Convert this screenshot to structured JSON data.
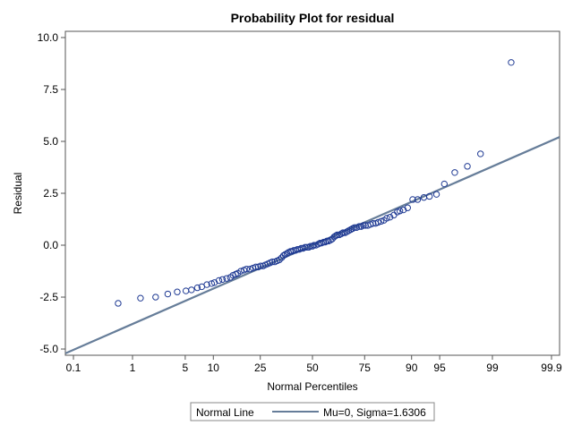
{
  "chart_data": {
    "type": "scatter",
    "title": "Probability Plot for residual",
    "xlabel": "Normal Percentiles",
    "ylabel": "Residual",
    "x_scale": "normal-probability",
    "xlim": [
      0.07,
      99.93
    ],
    "ylim": [
      -5.3,
      10.3
    ],
    "x_ticks": [
      0.1,
      1,
      5,
      10,
      25,
      50,
      75,
      90,
      95,
      99,
      99.9
    ],
    "x_tick_labels": [
      "0.1",
      "1",
      "5",
      "10",
      "25",
      "50",
      "75",
      "90",
      "95",
      "99",
      "99.9"
    ],
    "y_ticks": [
      -5,
      -2.5,
      0,
      2.5,
      5,
      7.5,
      10
    ],
    "y_tick_labels": [
      "-5.0",
      "-2.5",
      "0.0",
      "2.5",
      "5.0",
      "7.5",
      "10.0"
    ],
    "grid": false,
    "marker_color": "#1f3a93",
    "line_color": "#667d99",
    "normal_line": {
      "mu": 0,
      "sigma": 1.6306
    },
    "legend": {
      "placement": "bottom-center",
      "title": "Normal Line",
      "entry": "Mu=0, Sigma=1.6306"
    },
    "series": [
      {
        "name": "residual",
        "x": [
          0.6,
          1.31,
          2.13,
          3.07,
          4.02,
          5.09,
          5.89,
          6.84,
          7.62,
          8.61,
          9.61,
          10.25,
          11.33,
          12.23,
          13.35,
          14.41,
          15.21,
          16.01,
          16.72,
          17.73,
          18.78,
          19.7,
          20.98,
          22.11,
          23.19,
          24.16,
          25.11,
          26.14,
          27.09,
          28.16,
          29.16,
          30.2,
          31.34,
          32.42,
          33.49,
          34.54,
          35.37,
          36.16,
          37.06,
          37.8,
          38.78,
          39.5,
          40.44,
          41.39,
          42.32,
          43.28,
          44.21,
          45.17,
          46.18,
          47.13,
          48.05,
          48.96,
          50.01,
          50.8,
          51.87,
          52.99,
          53.91,
          54.7,
          55.77,
          56.57,
          57.37,
          58.23,
          59.23,
          60.13,
          61.02,
          61.78,
          62.6,
          63.6,
          64.54,
          65.35,
          66.3,
          67.21,
          68.04,
          68.94,
          69.78,
          70.66,
          71.58,
          72.68,
          73.58,
          74.52,
          75.37,
          76.35,
          77.37,
          78.34,
          79.3,
          80.19,
          81.23,
          82.24,
          83.16,
          84.2,
          85.36,
          86.39,
          87.08,
          88.03,
          89.07,
          90.25,
          91.3,
          92.51,
          93.48,
          94.56,
          95.59,
          96.71,
          97.74,
          98.51,
          99.49
        ],
        "y": [
          -2.8,
          -2.55,
          -2.5,
          -2.35,
          -2.25,
          -2.2,
          -2.15,
          -2.05,
          -2.0,
          -1.9,
          -1.85,
          -1.8,
          -1.7,
          -1.65,
          -1.6,
          -1.55,
          -1.45,
          -1.4,
          -1.35,
          -1.25,
          -1.2,
          -1.15,
          -1.15,
          -1.1,
          -1.05,
          -1.05,
          -1.0,
          -1.0,
          -0.95,
          -0.9,
          -0.85,
          -0.8,
          -0.8,
          -0.75,
          -0.7,
          -0.6,
          -0.5,
          -0.45,
          -0.4,
          -0.35,
          -0.3,
          -0.3,
          -0.25,
          -0.25,
          -0.2,
          -0.2,
          -0.15,
          -0.15,
          -0.1,
          -0.1,
          -0.1,
          -0.05,
          -0.05,
          0.0,
          0.0,
          0.05,
          0.1,
          0.1,
          0.15,
          0.15,
          0.2,
          0.2,
          0.25,
          0.3,
          0.4,
          0.45,
          0.5,
          0.5,
          0.55,
          0.6,
          0.6,
          0.65,
          0.7,
          0.75,
          0.8,
          0.85,
          0.85,
          0.9,
          0.9,
          0.95,
          0.95,
          0.95,
          1.0,
          1.05,
          1.05,
          1.1,
          1.15,
          1.2,
          1.3,
          1.35,
          1.45,
          1.6,
          1.65,
          1.7,
          1.8,
          2.2,
          2.2,
          2.3,
          2.35,
          2.45,
          2.95,
          3.5,
          3.8,
          4.4,
          8.8
        ]
      }
    ]
  }
}
